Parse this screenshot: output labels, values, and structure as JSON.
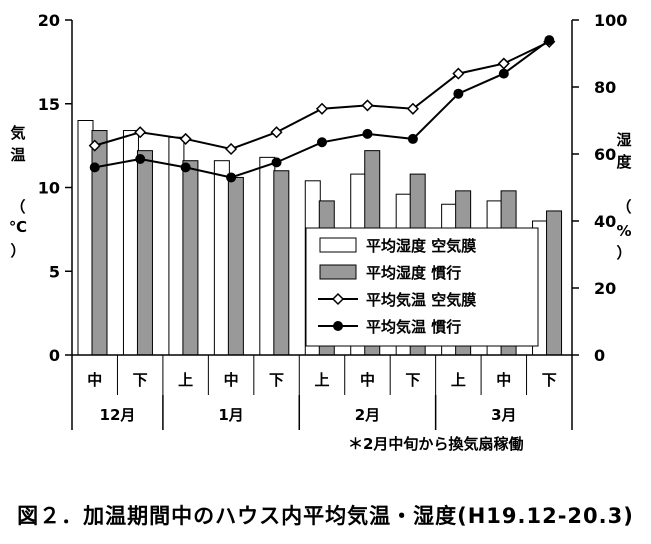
{
  "chart_data": {
    "type": "bar+line",
    "left_axis": {
      "label_chars": [
        "気",
        "温",
        "（",
        "℃",
        "）"
      ],
      "ylim": [
        0,
        20
      ],
      "ticks": [
        "0",
        "5",
        "10",
        "15",
        "20"
      ]
    },
    "right_axis": {
      "label_chars": [
        "湿",
        "度",
        "（",
        "%",
        "）"
      ],
      "ylim": [
        0,
        100
      ],
      "ticks": [
        "0",
        "20",
        "40",
        "60",
        "80",
        "100"
      ]
    },
    "categories": [
      "中",
      "下",
      "上",
      "中",
      "下",
      "上",
      "中",
      "下",
      "上",
      "中",
      "下"
    ],
    "month_groups": [
      {
        "label": "12月",
        "count": 2
      },
      {
        "label": "1月",
        "count": 3
      },
      {
        "label": "2月",
        "count": 3
      },
      {
        "label": "3月",
        "count": 3
      }
    ],
    "humidity_series": [
      {
        "name": "平均湿度 空気膜",
        "axis": "right",
        "color": "#ffffff",
        "values": [
          70,
          67,
          65,
          58,
          59,
          52,
          54,
          48,
          45,
          46,
          40
        ]
      },
      {
        "name": "平均湿度 慣行",
        "axis": "right",
        "color": "#999999",
        "values": [
          67,
          61,
          58,
          53,
          55,
          46,
          61,
          54,
          49,
          49,
          43
        ]
      }
    ],
    "temperature_series": [
      {
        "name": "平均気温 空気膜",
        "axis": "left",
        "marker": "open-diamond",
        "values": [
          12.5,
          13.3,
          12.9,
          12.3,
          13.3,
          14.7,
          14.9,
          14.7,
          16.8,
          17.4,
          18.7
        ]
      },
      {
        "name": "平均気温 慣行",
        "axis": "left",
        "marker": "filled-circle",
        "values": [
          11.2,
          11.7,
          11.2,
          10.6,
          11.5,
          12.7,
          13.2,
          12.9,
          15.6,
          16.8,
          18.8
        ]
      }
    ],
    "annotation": "＊2月中旬から換気扇稼働",
    "legend_position": "right"
  },
  "caption": "図２．加温期間中のハウス内平均気温・湿度(H19.12-20.3)"
}
